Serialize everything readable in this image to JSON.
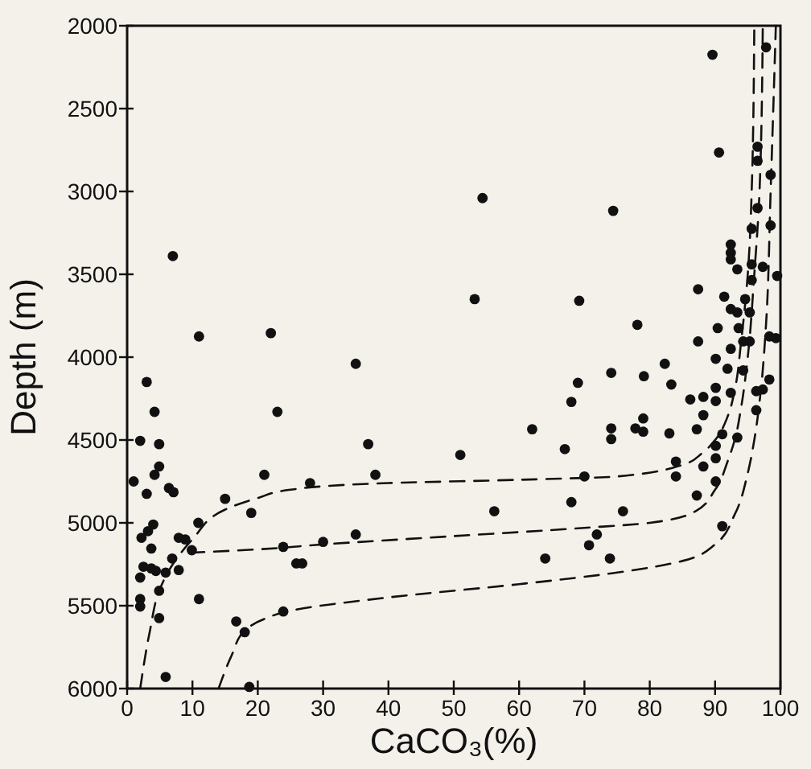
{
  "chart_data": {
    "type": "scatter",
    "xlabel": "CaCO₃(%)",
    "ylabel": "Depth (m)",
    "xlim": [
      0,
      100
    ],
    "ylim": [
      6000,
      2000
    ],
    "xticks": [
      0,
      10,
      20,
      30,
      40,
      50,
      60,
      70,
      80,
      90,
      100
    ],
    "yticks": [
      2000,
      2500,
      3000,
      3500,
      4000,
      4500,
      5000,
      5500,
      6000
    ],
    "grid": false,
    "marker": "circle",
    "series": [
      {
        "color": "#111111",
        "x": [
          7,
          11,
          22,
          35,
          3,
          89.6,
          97.8,
          90.6,
          54.4,
          74.4,
          96.5,
          96.5,
          98.5,
          96.5,
          95.6,
          98.5,
          92.4,
          92.4,
          92.4,
          95.6,
          93.4,
          97.3,
          99.5,
          95.6,
          87.4,
          53.2,
          69.2,
          91.4,
          94.6,
          92.4,
          93.4,
          95.3,
          99.3,
          78.1,
          87.4,
          90.4,
          93.6,
          92.4,
          94.3,
          95.3,
          98.3,
          90.1,
          91.9,
          94.3,
          98.3,
          82.3,
          74.1,
          79.1,
          69,
          83.3,
          68,
          62,
          74.1,
          74.1,
          77.8,
          79,
          79,
          83,
          86.2,
          88.2,
          90.1,
          92.4,
          90.1,
          88.2,
          87.2,
          91.1,
          93.4,
          90.1,
          96.3,
          96.3,
          97.3,
          51,
          67,
          70,
          84,
          84,
          88.2,
          90.1,
          90.1,
          87.2,
          56.2,
          68,
          75.9,
          71.9,
          70.7,
          64,
          73.9,
          91.1,
          2,
          4.2,
          23,
          36.9,
          4.9,
          1,
          4.2,
          4.9,
          3,
          6.4,
          7.1,
          15,
          21,
          28,
          38,
          19,
          10.9,
          4,
          3.2,
          2.2,
          3.7,
          7.9,
          8.9,
          9.9,
          2.5,
          3.7,
          4.4,
          6.9,
          5.9,
          7.9,
          2,
          4.9,
          2,
          2,
          11,
          4.9,
          16.7,
          18,
          23.9,
          23.9,
          25.9,
          26.8,
          30,
          35,
          5.9,
          18.7
        ],
        "values": [
          3390,
          3875,
          3855,
          4040,
          4150,
          2175,
          2130,
          2765,
          3040,
          3117,
          2730,
          2815,
          2900,
          3100,
          3225,
          3205,
          3320,
          3370,
          3410,
          3440,
          3470,
          3455,
          3510,
          3535,
          3590,
          3650,
          3660,
          3635,
          3650,
          3710,
          3730,
          3730,
          3885,
          3805,
          3905,
          3825,
          3825,
          3950,
          3905,
          3905,
          3875,
          4010,
          4070,
          4080,
          4135,
          4040,
          4095,
          4115,
          4155,
          4165,
          4270,
          4435,
          4430,
          4495,
          4430,
          4370,
          4450,
          4460,
          4255,
          4240,
          4265,
          4215,
          4185,
          4350,
          4435,
          4465,
          4485,
          4535,
          4320,
          4205,
          4195,
          4590,
          4555,
          4720,
          4630,
          4720,
          4660,
          4610,
          4750,
          4835,
          4930,
          4875,
          4930,
          5070,
          5135,
          5215,
          5215,
          5020,
          4505,
          4330,
          4330,
          4525,
          4525,
          4750,
          4710,
          4660,
          4825,
          4790,
          4815,
          4855,
          4710,
          4760,
          4710,
          4940,
          5000,
          5010,
          5050,
          5090,
          5155,
          5090,
          5100,
          5165,
          5265,
          5275,
          5290,
          5215,
          5300,
          5285,
          5330,
          5410,
          5460,
          5505,
          5460,
          5575,
          5595,
          5660,
          5535,
          5145,
          5245,
          5245,
          5115,
          5070,
          5930,
          5990
        ]
      },
      {
        "type": "line",
        "color": "#111111",
        "line_style": "dashed",
        "marker": "none",
        "x": [
          2,
          3.5,
          5,
          7.5,
          10,
          15,
          20,
          25,
          40,
          60,
          75,
          85,
          88,
          90,
          92,
          93,
          94,
          95,
          95.6,
          96
        ],
        "values": [
          6000,
          5650,
          5400,
          5220,
          5100,
          4920,
          4850,
          4800,
          4760,
          4740,
          4720,
          4650,
          4580,
          4500,
          4350,
          4200,
          3900,
          3500,
          3000,
          2000
        ]
      },
      {
        "type": "line",
        "color": "#111111",
        "line_style": "dashed",
        "marker": "none",
        "x": [
          9.6,
          20,
          30,
          50,
          70,
          80,
          87,
          90,
          92,
          93,
          94,
          95,
          96,
          96.8,
          97.3
        ],
        "values": [
          5180,
          5160,
          5130,
          5080,
          5030,
          5000,
          4930,
          4800,
          4620,
          4500,
          4300,
          4000,
          3500,
          3000,
          2000
        ]
      },
      {
        "type": "line",
        "color": "#111111",
        "line_style": "dashed",
        "marker": "none",
        "x": [
          14,
          16,
          18,
          21,
          25,
          40,
          60,
          75,
          85,
          90,
          93,
          95,
          96,
          97,
          97.8,
          98.5,
          99.3
        ],
        "values": [
          6000,
          5800,
          5650,
          5580,
          5530,
          5450,
          5370,
          5300,
          5230,
          5130,
          4950,
          4700,
          4500,
          4200,
          3800,
          3000,
          2000
        ]
      }
    ]
  }
}
